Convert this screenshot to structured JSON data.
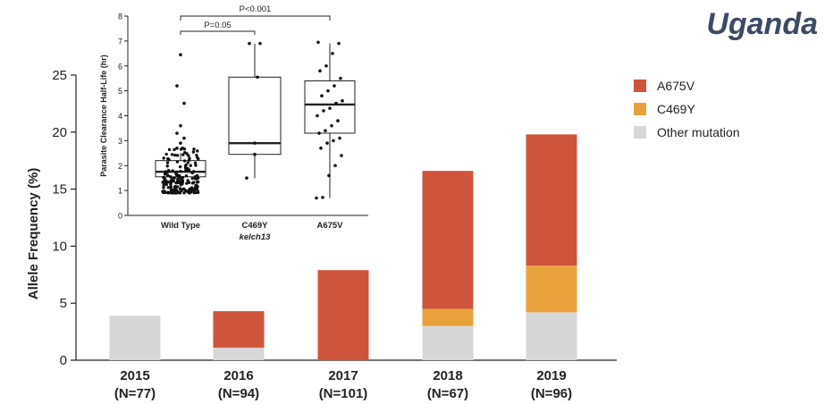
{
  "title": "Uganda",
  "colors": {
    "A675V": "#cf543c",
    "C469Y": "#e9a23b",
    "other": "#d7d7d7"
  },
  "chart_data": [
    {
      "type": "bar",
      "stacked": true,
      "title": "",
      "ylabel": "Allele Frequency (%)",
      "ylim": [
        0,
        25
      ],
      "yticks": [
        "0",
        "5",
        "10",
        "15",
        "20",
        "25"
      ],
      "categories": [
        "2015",
        "2016",
        "2017",
        "2018",
        "2019"
      ],
      "category_sublabels": [
        "(N=77)",
        "(N=94)",
        "(N=101)",
        "(N=67)",
        "(N=96)"
      ],
      "series": [
        {
          "name": "Other mutation",
          "values": [
            3.9,
            1.1,
            0,
            3.0,
            4.2
          ]
        },
        {
          "name": "C469Y",
          "values": [
            0,
            0,
            0,
            1.5,
            4.1
          ]
        },
        {
          "name": "A675V",
          "values": [
            0,
            3.2,
            7.9,
            12.1,
            11.5
          ]
        }
      ],
      "legend": {
        "placement": "right",
        "order": [
          "A675V",
          "C469Y",
          "Other mutation"
        ]
      }
    },
    {
      "type": "scatter",
      "subtype": "box",
      "ylabel": "Parasite Clearance Half-Life (hr)",
      "ylim": [
        0,
        8
      ],
      "yticks": [
        "0",
        "1",
        "2",
        "3",
        "4",
        "5",
        "6",
        "7",
        "8"
      ],
      "categories": [
        "Wild Type",
        "C469Y",
        "A675V"
      ],
      "category_sublabel": "kelch13",
      "boxes": [
        {
          "name": "Wild Type",
          "whisker_low": 0.9,
          "q1": 1.55,
          "median": 1.75,
          "q3": 2.2,
          "whisker_high": 2.5
        },
        {
          "name": "C469Y",
          "whisker_low": 1.5,
          "q1": 2.45,
          "median": 2.9,
          "q3": 5.55,
          "whisker_high": 6.9
        },
        {
          "name": "A675V",
          "whisker_low": 0.7,
          "q1": 3.3,
          "median": 4.45,
          "q3": 5.4,
          "whisker_high": 6.9
        }
      ],
      "points": [
        {
          "name": "C469Y",
          "values": [
            1.5,
            2.45,
            2.9,
            5.55,
            6.9,
            6.9
          ]
        },
        {
          "name": "A675V",
          "values": [
            0.7,
            0.72,
            1.6,
            2.0,
            2.4,
            2.7,
            2.9,
            3.0,
            3.1,
            3.3,
            3.4,
            3.6,
            3.8,
            4.0,
            4.2,
            4.3,
            4.5,
            4.6,
            4.8,
            5.0,
            5.2,
            5.5,
            5.8,
            6.0,
            6.5,
            6.9,
            6.95
          ]
        }
      ],
      "annotations": [
        {
          "text": "P=0.05",
          "from": "Wild Type",
          "to": "C469Y"
        },
        {
          "text": "P<0.001",
          "from": "Wild Type",
          "to": "A675V"
        }
      ]
    }
  ]
}
